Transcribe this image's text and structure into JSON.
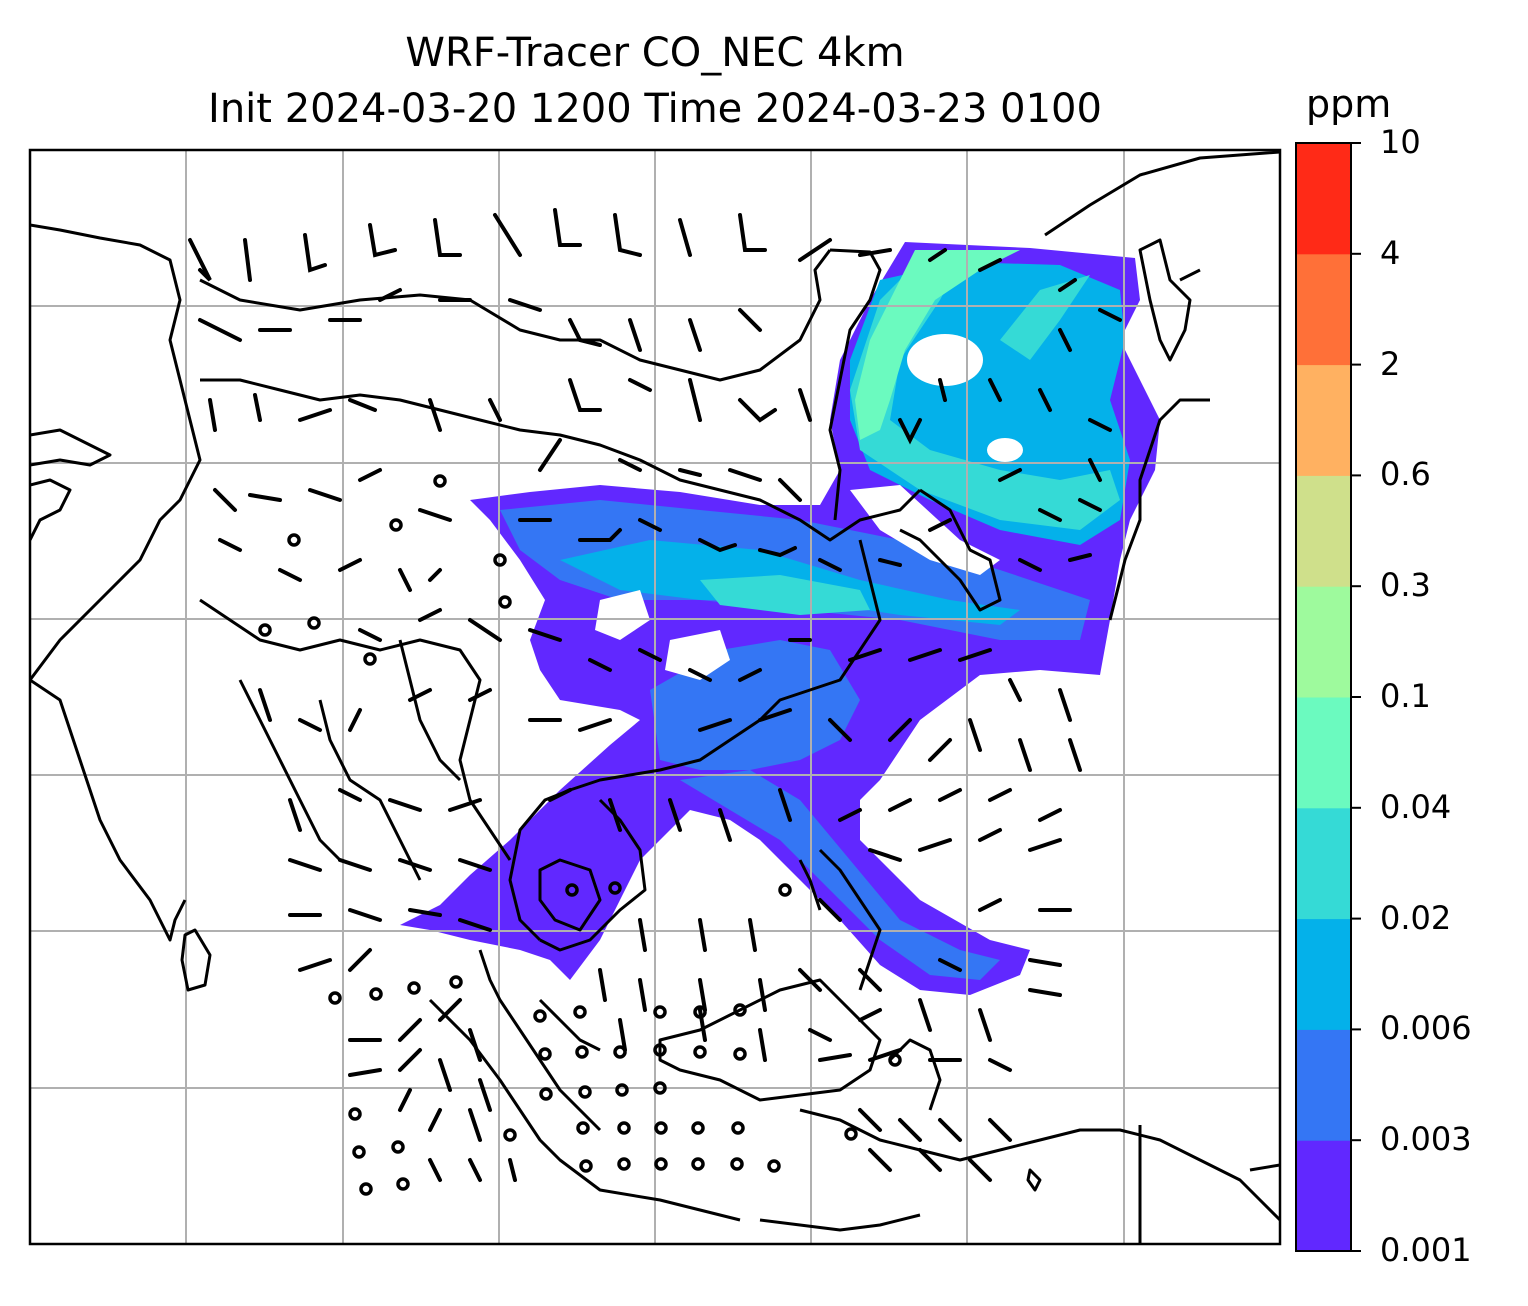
{
  "title": {
    "line1": "WRF-Tracer CO_NEC 4km",
    "line2": "Init 2024-03-20 1200 Time 2024-03-23 0100"
  },
  "colorbar": {
    "unit": "ppm",
    "levels": [
      "0.001",
      "0.003",
      "0.006",
      "0.02",
      "0.04",
      "0.1",
      "0.3",
      "0.6",
      "2",
      "4",
      "10"
    ],
    "colors": [
      "#6128ff",
      "#3476f4",
      "#04b1ea",
      "#35dad6",
      "#6bfabf",
      "#9efa9d",
      "#cfe08b",
      "#ffb161",
      "#ff7038",
      "#ff2a17"
    ]
  },
  "map": {
    "variable": "CO_NEC tracer concentration with wind barbs",
    "gridlines": true,
    "coastline_color": "#000000"
  }
}
